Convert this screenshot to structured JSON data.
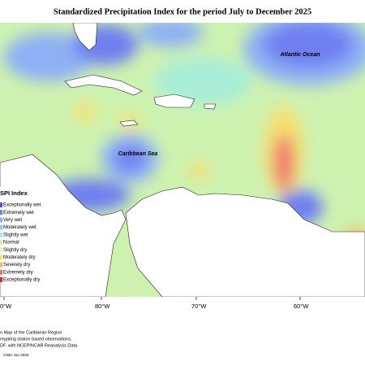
{
  "title": "Standardized Precipitation Index for the period July to December 2025",
  "map_labels": {
    "atlantic": "Atlantic Ocean",
    "caribbean": "Caribbean Sea"
  },
  "legend": {
    "title": "SPI Index",
    "items": [
      {
        "label": "Exceptionally wet",
        "color": "#5a4fcf"
      },
      {
        "label": "Extremely wet",
        "color": "#6f7ff0"
      },
      {
        "label": "Very wet",
        "color": "#8fb0f5"
      },
      {
        "label": "Moderately wet",
        "color": "#7fd3ea"
      },
      {
        "label": "Slightly wet",
        "color": "#a8eed8"
      },
      {
        "label": "Normal",
        "color": "#cdf2b0"
      },
      {
        "label": "Slightly dry",
        "color": "#f2f29a"
      },
      {
        "label": "Moderately dry",
        "color": "#f5e070"
      },
      {
        "label": "Severely dry",
        "color": "#f5b860"
      },
      {
        "label": "Extremely dry",
        "color": "#f07070"
      },
      {
        "label": "Exceptionally dry",
        "color": "#c83030"
      }
    ]
  },
  "longitudes": [
    "0°W",
    "80°W",
    "70°W",
    "60°W"
  ],
  "notes": [
    "n Map of the Caribbean Region",
    "regating station based observations,",
    "DF, with NCEP/NCAR Reanalysis Data."
  ],
  "credit": "CIMH Jan 2026"
}
